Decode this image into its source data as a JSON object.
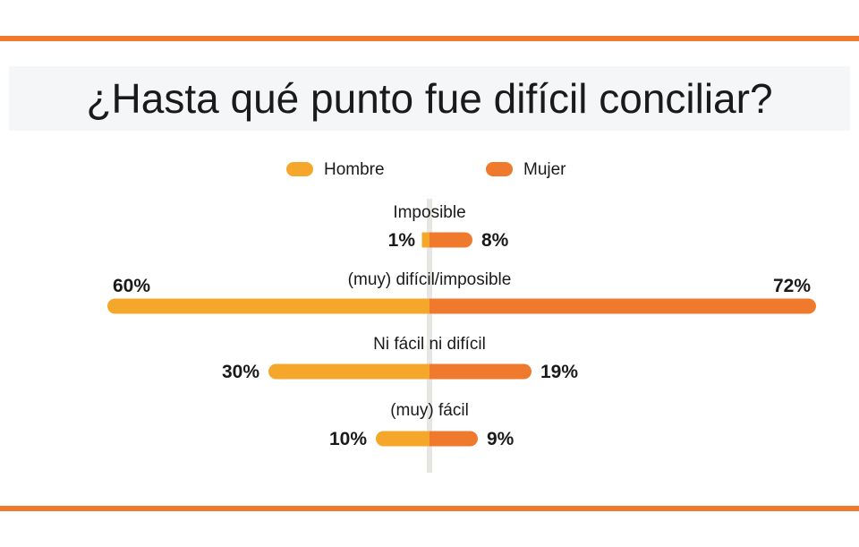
{
  "title": "¿Hasta qué punto fue difícil conciliar?",
  "colors": {
    "rule": "#ef7a2e",
    "hombre": "#f5a72c",
    "mujer": "#ef7a2e",
    "axis": "#e6e6e2"
  },
  "chart_data": {
    "type": "bar",
    "orientation": "horizontal-diverging",
    "categories": [
      "Imposible",
      "(muy) difícil/imposible",
      "Ni fácil ni difícil",
      "(muy) fácil"
    ],
    "series": [
      {
        "name": "Hombre",
        "values": [
          1,
          60,
          30,
          10
        ],
        "labels": [
          "1%",
          "60%",
          "30%",
          "10%"
        ]
      },
      {
        "name": "Mujer",
        "values": [
          8,
          72,
          19,
          9
        ],
        "labels": [
          "8%",
          "72%",
          "19%",
          "9%"
        ]
      }
    ],
    "legend": "top-center",
    "unit": "%"
  }
}
